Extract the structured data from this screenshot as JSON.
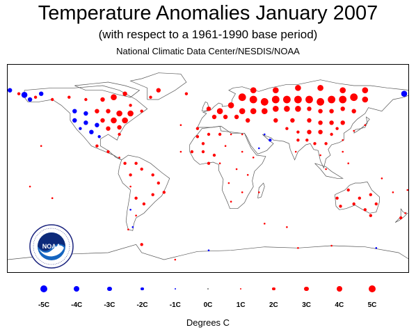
{
  "title": "Temperature Anomalies January 2007",
  "subtitle": "(with respect to a 1961-1990 base period)",
  "source": "National Climatic Data Center/NESDIS/NOAA",
  "logo": {
    "text": "NOAA",
    "ring_text": "NATIONAL OCEANIC AND ATMOSPHERIC ADMINISTRATION · U.S. DEPARTMENT OF COMMERCE"
  },
  "legend": {
    "items": [
      {
        "label": "-5C",
        "value": -5
      },
      {
        "label": "-4C",
        "value": -4
      },
      {
        "label": "-3C",
        "value": -3
      },
      {
        "label": "-2C",
        "value": -2
      },
      {
        "label": "-1C",
        "value": -1
      },
      {
        "label": "0C",
        "value": 0
      },
      {
        "label": "1C",
        "value": 1
      },
      {
        "label": "2C",
        "value": 2
      },
      {
        "label": "3C",
        "value": 3
      },
      {
        "label": "4C",
        "value": 4
      },
      {
        "label": "5C",
        "value": 5
      }
    ],
    "units": "Degrees C"
  },
  "colors": {
    "warm": "#ff0000",
    "cold": "#0000ff",
    "neutral": "#888888",
    "coast": "#666666"
  },
  "anomalies": [
    {
      "lon": 30,
      "lat": 62,
      "v": 5
    },
    {
      "lon": 40,
      "lat": 60,
      "v": 5
    },
    {
      "lon": 50,
      "lat": 58,
      "v": 5
    },
    {
      "lon": 60,
      "lat": 60,
      "v": 5
    },
    {
      "lon": 70,
      "lat": 60,
      "v": 5
    },
    {
      "lon": 80,
      "lat": 60,
      "v": 5
    },
    {
      "lon": 90,
      "lat": 60,
      "v": 5
    },
    {
      "lon": 100,
      "lat": 58,
      "v": 5
    },
    {
      "lon": 110,
      "lat": 60,
      "v": 5
    },
    {
      "lon": 120,
      "lat": 60,
      "v": 5
    },
    {
      "lon": 130,
      "lat": 62,
      "v": 5
    },
    {
      "lon": 140,
      "lat": 60,
      "v": 4
    },
    {
      "lon": 40,
      "lat": 68,
      "v": 4
    },
    {
      "lon": 60,
      "lat": 68,
      "v": 4
    },
    {
      "lon": 80,
      "lat": 70,
      "v": 4
    },
    {
      "lon": 100,
      "lat": 70,
      "v": 4
    },
    {
      "lon": 120,
      "lat": 68,
      "v": 4
    },
    {
      "lon": 140,
      "lat": 68,
      "v": 4
    },
    {
      "lon": 20,
      "lat": 55,
      "v": 4
    },
    {
      "lon": 30,
      "lat": 50,
      "v": 4
    },
    {
      "lon": 40,
      "lat": 50,
      "v": 4
    },
    {
      "lon": 50,
      "lat": 50,
      "v": 4
    },
    {
      "lon": 60,
      "lat": 52,
      "v": 4
    },
    {
      "lon": 70,
      "lat": 52,
      "v": 4
    },
    {
      "lon": 80,
      "lat": 52,
      "v": 4
    },
    {
      "lon": 90,
      "lat": 52,
      "v": 3
    },
    {
      "lon": 100,
      "lat": 50,
      "v": 3
    },
    {
      "lon": 110,
      "lat": 50,
      "v": 3
    },
    {
      "lon": 120,
      "lat": 52,
      "v": 3
    },
    {
      "lon": 130,
      "lat": 50,
      "v": 3
    },
    {
      "lon": 10,
      "lat": 50,
      "v": 4
    },
    {
      "lon": 0,
      "lat": 52,
      "v": 3
    },
    {
      "lon": 15,
      "lat": 45,
      "v": 3
    },
    {
      "lon": 25,
      "lat": 45,
      "v": 3
    },
    {
      "lon": 5,
      "lat": 45,
      "v": 3
    },
    {
      "lon": 35,
      "lat": 42,
      "v": 3
    },
    {
      "lon": 60,
      "lat": 42,
      "v": 3
    },
    {
      "lon": 75,
      "lat": 42,
      "v": 3
    },
    {
      "lon": 90,
      "lat": 42,
      "v": 3
    },
    {
      "lon": 100,
      "lat": 40,
      "v": 3
    },
    {
      "lon": 110,
      "lat": 40,
      "v": 3
    },
    {
      "lon": 120,
      "lat": 40,
      "v": 3
    },
    {
      "lon": 70,
      "lat": 35,
      "v": 2
    },
    {
      "lon": 80,
      "lat": 32,
      "v": 2
    },
    {
      "lon": 90,
      "lat": 32,
      "v": 3
    },
    {
      "lon": 100,
      "lat": 32,
      "v": 3
    },
    {
      "lon": 110,
      "lat": 30,
      "v": 2
    },
    {
      "lon": 115,
      "lat": 35,
      "v": 2
    },
    {
      "lon": 80,
      "lat": 25,
      "v": 2
    },
    {
      "lon": 88,
      "lat": 25,
      "v": 2
    },
    {
      "lon": 95,
      "lat": 22,
      "v": 2
    },
    {
      "lon": 105,
      "lat": 22,
      "v": 2
    },
    {
      "lon": 78,
      "lat": 15,
      "v": 1
    },
    {
      "lon": 100,
      "lat": 12,
      "v": 1
    },
    {
      "lon": 120,
      "lat": 15,
      "v": 1
    },
    {
      "lon": 125,
      "lat": 5,
      "v": 1
    },
    {
      "lon": 105,
      "lat": 0,
      "v": 1
    },
    {
      "lon": 120,
      "lat": 25,
      "v": 1
    },
    {
      "lon": 140,
      "lat": 38,
      "v": 1
    },
    {
      "lon": 130,
      "lat": 33,
      "v": 1
    },
    {
      "lon": -10,
      "lat": 35,
      "v": 2
    },
    {
      "lon": -10,
      "lat": 28,
      "v": 2
    },
    {
      "lon": -5,
      "lat": 22,
      "v": 2
    },
    {
      "lon": -15,
      "lat": 15,
      "v": 2
    },
    {
      "lon": -5,
      "lat": 15,
      "v": 2
    },
    {
      "lon": 5,
      "lat": 12,
      "v": 2
    },
    {
      "lon": 0,
      "lat": 5,
      "v": 2
    },
    {
      "lon": 10,
      "lat": 5,
      "v": 1
    },
    {
      "lon": 0,
      "lat": 30,
      "v": 2
    },
    {
      "lon": 10,
      "lat": 30,
      "v": 2
    },
    {
      "lon": 20,
      "lat": 30,
      "v": 1
    },
    {
      "lon": 30,
      "lat": 30,
      "v": 1
    },
    {
      "lon": 15,
      "lat": 20,
      "v": 1
    },
    {
      "lon": 30,
      "lat": 15,
      "v": 1
    },
    {
      "lon": 40,
      "lat": 10,
      "v": 1
    },
    {
      "lon": 25,
      "lat": 0,
      "v": 1
    },
    {
      "lon": 35,
      "lat": -5,
      "v": 1
    },
    {
      "lon": 30,
      "lat": -20,
      "v": 1
    },
    {
      "lon": 20,
      "lat": -28,
      "v": 1
    },
    {
      "lon": 45,
      "lat": -20,
      "v": 1
    },
    {
      "lon": 18,
      "lat": -12,
      "v": 1
    },
    {
      "lon": -100,
      "lat": 50,
      "v": 3
    },
    {
      "lon": -90,
      "lat": 50,
      "v": 3
    },
    {
      "lon": -80,
      "lat": 48,
      "v": 4
    },
    {
      "lon": -70,
      "lat": 48,
      "v": 4
    },
    {
      "lon": -85,
      "lat": 42,
      "v": 4
    },
    {
      "lon": -75,
      "lat": 42,
      "v": 4
    },
    {
      "lon": -95,
      "lat": 42,
      "v": 3
    },
    {
      "lon": -80,
      "lat": 36,
      "v": 3
    },
    {
      "lon": -90,
      "lat": 35,
      "v": 3
    },
    {
      "lon": -70,
      "lat": 55,
      "v": 2
    },
    {
      "lon": -60,
      "lat": 50,
      "v": 2
    },
    {
      "lon": -80,
      "lat": 30,
      "v": 2
    },
    {
      "lon": -85,
      "lat": 62,
      "v": 4
    },
    {
      "lon": -95,
      "lat": 60,
      "v": 3
    },
    {
      "lon": -75,
      "lat": 65,
      "v": 3
    },
    {
      "lon": -45,
      "lat": 68,
      "v": 3
    },
    {
      "lon": -52,
      "lat": 62,
      "v": 2
    },
    {
      "lon": -20,
      "lat": 65,
      "v": 2
    },
    {
      "lon": -170,
      "lat": 65,
      "v": 2
    },
    {
      "lon": -155,
      "lat": 62,
      "v": 2
    },
    {
      "lon": -125,
      "lat": 62,
      "v": 2
    },
    {
      "lon": -110,
      "lat": 60,
      "v": 2
    },
    {
      "lon": -140,
      "lat": 60,
      "v": 2
    },
    {
      "lon": -120,
      "lat": 50,
      "v": -3
    },
    {
      "lon": -110,
      "lat": 48,
      "v": -3
    },
    {
      "lon": -120,
      "lat": 42,
      "v": -3
    },
    {
      "lon": -110,
      "lat": 40,
      "v": -3
    },
    {
      "lon": -100,
      "lat": 38,
      "v": -3
    },
    {
      "lon": -105,
      "lat": 32,
      "v": -3
    },
    {
      "lon": -115,
      "lat": 35,
      "v": -2
    },
    {
      "lon": -98,
      "lat": 28,
      "v": -2
    },
    {
      "lon": -160,
      "lat": 60,
      "v": -3
    },
    {
      "lon": -165,
      "lat": 64,
      "v": -4
    },
    {
      "lon": -150,
      "lat": 65,
      "v": -3
    },
    {
      "lon": 175,
      "lat": 65,
      "v": -4
    },
    {
      "lon": -178,
      "lat": 68,
      "v": -3
    },
    {
      "lon": 55,
      "lat": 25,
      "v": -2
    },
    {
      "lon": 50,
      "lat": 30,
      "v": -1
    },
    {
      "lon": 45,
      "lat": 18,
      "v": -1
    },
    {
      "lon": -100,
      "lat": 20,
      "v": 2
    },
    {
      "lon": -90,
      "lat": 15,
      "v": 2
    },
    {
      "lon": -80,
      "lat": 10,
      "v": 1
    },
    {
      "lon": -75,
      "lat": 5,
      "v": 2
    },
    {
      "lon": -65,
      "lat": 5,
      "v": 2
    },
    {
      "lon": -60,
      "lat": 0,
      "v": 2
    },
    {
      "lon": -70,
      "lat": -5,
      "v": 2
    },
    {
      "lon": -50,
      "lat": -5,
      "v": 2
    },
    {
      "lon": -45,
      "lat": -12,
      "v": 2
    },
    {
      "lon": -40,
      "lat": -20,
      "v": 2
    },
    {
      "lon": -50,
      "lat": -22,
      "v": 2
    },
    {
      "lon": -58,
      "lat": -30,
      "v": 2
    },
    {
      "lon": -65,
      "lat": -25,
      "v": 2
    },
    {
      "lon": -70,
      "lat": -15,
      "v": 1
    },
    {
      "lon": -70,
      "lat": -35,
      "v": -1
    },
    {
      "lon": -65,
      "lat": -40,
      "v": 1
    },
    {
      "lon": -68,
      "lat": -50,
      "v": -1
    },
    {
      "lon": -72,
      "lat": -52,
      "v": 1
    },
    {
      "lon": -150,
      "lat": 20,
      "v": 1
    },
    {
      "lon": -160,
      "lat": -15,
      "v": 1
    },
    {
      "lon": -140,
      "lat": -25,
      "v": 1
    },
    {
      "lon": -25,
      "lat": 38,
      "v": 1
    },
    {
      "lon": -25,
      "lat": 15,
      "v": 1
    },
    {
      "lon": 115,
      "lat": -25,
      "v": 2
    },
    {
      "lon": 125,
      "lat": -18,
      "v": 2
    },
    {
      "lon": 135,
      "lat": -25,
      "v": 2
    },
    {
      "lon": 145,
      "lat": -22,
      "v": 2
    },
    {
      "lon": 150,
      "lat": -30,
      "v": 2
    },
    {
      "lon": 140,
      "lat": -35,
      "v": 2
    },
    {
      "lon": 130,
      "lat": -30,
      "v": 2
    },
    {
      "lon": 118,
      "lat": -32,
      "v": 2
    },
    {
      "lon": 145,
      "lat": -40,
      "v": 2
    },
    {
      "lon": 172,
      "lat": -42,
      "v": 2
    },
    {
      "lon": 176,
      "lat": -38,
      "v": 1
    },
    {
      "lon": 155,
      "lat": -8,
      "v": 1
    },
    {
      "lon": 165,
      "lat": -20,
      "v": 1
    },
    {
      "lon": 178,
      "lat": -18,
      "v": 1
    },
    {
      "lon": 70,
      "lat": -50,
      "v": 1
    },
    {
      "lon": 50,
      "lat": -47,
      "v": 1
    },
    {
      "lon": -60,
      "lat": -65,
      "v": 2
    },
    {
      "lon": 0,
      "lat": -70,
      "v": -1
    },
    {
      "lon": 80,
      "lat": -68,
      "v": 1
    },
    {
      "lon": 150,
      "lat": -68,
      "v": -1
    },
    {
      "lon": 110,
      "lat": -66,
      "v": 1
    },
    {
      "lon": -30,
      "lat": -78,
      "v": 1
    }
  ]
}
